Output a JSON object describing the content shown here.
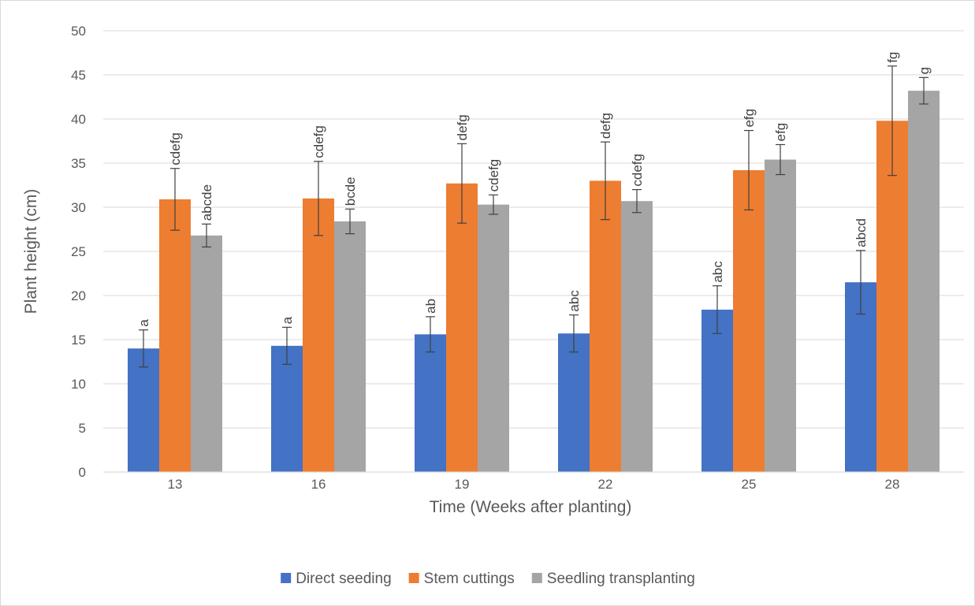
{
  "chart_data": {
    "type": "bar",
    "title": "",
    "xlabel": "Time (Weeks after planting)",
    "ylabel": "Plant height (cm)",
    "ylim": [
      0,
      50
    ],
    "yticks": [
      "0",
      "5",
      "10",
      "15",
      "20",
      "25",
      "30",
      "35",
      "40",
      "45",
      "50"
    ],
    "categories": [
      "13",
      "16",
      "19",
      "22",
      "25",
      "28"
    ],
    "grid": true,
    "legend_position": "bottom",
    "series": [
      {
        "name": "Direct seeding",
        "color": "#4472c4",
        "values": [
          14.0,
          14.3,
          15.6,
          15.7,
          18.4,
          21.5
        ],
        "errors": [
          2.1,
          2.1,
          2.0,
          2.1,
          2.7,
          3.6
        ],
        "labels": [
          "a",
          "a",
          "ab",
          "abc",
          "abc",
          "abcd"
        ]
      },
      {
        "name": "Stem cuttings",
        "color": "#ed7d31",
        "values": [
          30.9,
          31.0,
          32.7,
          33.0,
          34.2,
          39.8
        ],
        "errors": [
          3.5,
          4.2,
          4.5,
          4.4,
          4.5,
          6.2
        ],
        "labels": [
          "cdefg",
          "cdefg",
          "defg",
          "defg",
          "efg",
          "fg"
        ]
      },
      {
        "name": "Seedling transplanting",
        "color": "#a5a5a5",
        "values": [
          26.8,
          28.4,
          30.3,
          30.7,
          35.4,
          43.2
        ],
        "errors": [
          1.3,
          1.4,
          1.1,
          1.3,
          1.7,
          1.5
        ],
        "labels": [
          "abcde",
          "bcde",
          "cdefg",
          "cdefg",
          "efg",
          "g"
        ]
      }
    ]
  }
}
